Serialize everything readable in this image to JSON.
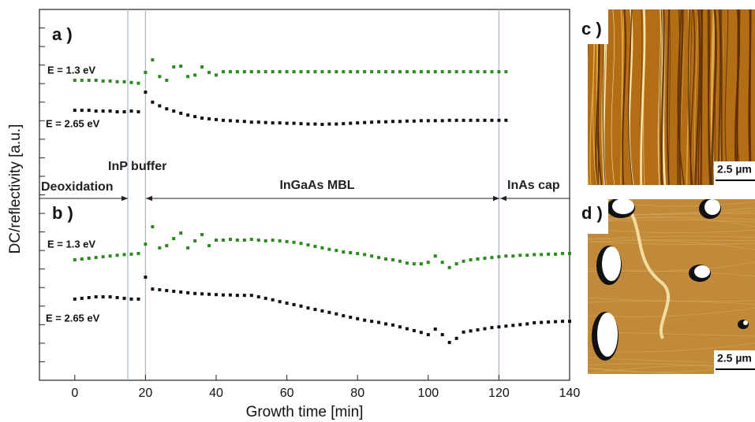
{
  "chart_data": {
    "type": "scatter",
    "xlabel": "Growth time [min]",
    "ylabel": "DC/reflectivity [a.u.]",
    "panel_labels": [
      "a )",
      "b )"
    ],
    "phases": [
      "Deoxidation",
      "InP buffer",
      "InGaAs MBL",
      "InAs cap"
    ],
    "vlines": [
      15,
      20,
      120
    ],
    "xlim": [
      -10,
      140
    ],
    "xticks": [
      0,
      20,
      40,
      60,
      80,
      100,
      120,
      140
    ],
    "ylim": [
      0,
      100
    ],
    "yticks": [
      5,
      10,
      15,
      20,
      25,
      30,
      35,
      40,
      45,
      50,
      55,
      60,
      65,
      70,
      75,
      80,
      85,
      90,
      95
    ],
    "x": [
      0,
      2,
      4,
      6,
      8,
      10,
      12,
      14,
      16,
      18,
      20,
      22,
      24,
      26,
      28,
      30,
      32,
      34,
      36,
      38,
      40,
      42,
      44,
      46,
      48,
      50,
      52,
      54,
      56,
      58,
      60,
      62,
      64,
      66,
      68,
      70,
      72,
      74,
      76,
      78,
      80,
      82,
      84,
      86,
      88,
      90,
      92,
      94,
      96,
      98,
      100,
      102,
      104,
      106,
      108,
      110,
      112,
      114,
      116,
      118,
      120,
      122,
      124,
      126,
      128,
      130,
      132,
      134,
      136,
      138,
      140
    ],
    "series": [
      {
        "name": "E = 1.3 eV",
        "color": "#2a8a1e",
        "values": [
          80.9,
          80.9,
          80.9,
          80.9,
          80.7,
          80.7,
          80.5,
          80.5,
          80.3,
          80.1,
          83.0,
          86.4,
          81.9,
          80.9,
          84.5,
          84.7,
          81.9,
          82.3,
          84.5,
          83.0,
          82.3,
          83.2,
          83.2,
          83.2,
          83.2,
          83.2,
          83.2,
          83.2,
          83.2,
          83.2,
          83.2,
          83.2,
          83.2,
          83.2,
          83.2,
          83.2,
          83.2,
          83.2,
          83.2,
          83.2,
          83.2,
          83.2,
          83.2,
          83.2,
          83.2,
          83.2,
          83.2,
          83.2,
          83.2,
          83.2,
          83.2,
          83.2,
          83.2,
          83.2,
          83.2,
          83.2,
          83.2,
          83.2,
          83.2,
          83.2,
          83.2,
          83.2,
          null,
          null,
          null,
          null,
          null,
          null,
          null,
          null,
          null
        ]
      },
      {
        "name": "E = 2.65 eV",
        "color": "#111111",
        "values": [
          72.8,
          72.8,
          72.8,
          72.6,
          72.6,
          72.6,
          72.4,
          72.4,
          72.6,
          72.4,
          77.7,
          75.0,
          74.0,
          73.2,
          72.6,
          72.0,
          71.5,
          71.1,
          70.7,
          70.5,
          70.3,
          70.1,
          70.0,
          69.9,
          69.8,
          69.6,
          69.6,
          69.5,
          69.4,
          69.4,
          69.3,
          69.3,
          69.2,
          69.1,
          69.1,
          69.0,
          69.1,
          69.1,
          69.2,
          69.3,
          69.4,
          69.5,
          69.6,
          69.7,
          69.7,
          69.8,
          69.8,
          69.9,
          69.9,
          70.0,
          70.0,
          70.0,
          70.0,
          70.1,
          70.1,
          70.1,
          70.1,
          70.1,
          70.1,
          70.1,
          70.1,
          70.1,
          null,
          null,
          null,
          null,
          null,
          null,
          null,
          null,
          null
        ]
      },
      {
        "name": "E = 1.3 eV",
        "color": "#2a8a1e",
        "values": [
          32.5,
          32.7,
          32.9,
          33.1,
          33.3,
          33.5,
          33.7,
          33.9,
          34.0,
          34.2,
          36.7,
          41.4,
          35.7,
          36.3,
          38.2,
          39.7,
          35.7,
          37.6,
          39.3,
          36.3,
          37.8,
          37.8,
          38.0,
          37.8,
          37.8,
          38.0,
          37.8,
          37.6,
          37.8,
          37.6,
          37.4,
          37.2,
          36.9,
          36.5,
          36.1,
          35.7,
          35.3,
          35.0,
          34.6,
          34.4,
          34.2,
          33.9,
          33.5,
          33.1,
          32.7,
          32.5,
          32.1,
          31.6,
          31.4,
          31.4,
          31.8,
          33.5,
          31.8,
          30.4,
          31.4,
          32.1,
          32.5,
          32.7,
          32.9,
          33.1,
          33.3,
          33.5,
          33.5,
          33.7,
          33.7,
          33.9,
          33.9,
          34.0,
          34.0,
          34.2,
          34.2
        ]
      },
      {
        "name": "E = 2.65 eV",
        "color": "#111111",
        "values": [
          21.9,
          22.1,
          22.3,
          22.5,
          22.5,
          22.5,
          22.3,
          22.1,
          21.9,
          21.9,
          27.8,
          24.6,
          24.4,
          24.2,
          24.0,
          23.8,
          23.6,
          23.4,
          23.3,
          23.2,
          23.1,
          23.0,
          23.0,
          22.9,
          22.9,
          22.9,
          22.5,
          22.1,
          21.7,
          21.2,
          20.8,
          20.4,
          20.0,
          19.5,
          19.1,
          18.7,
          18.3,
          17.9,
          17.4,
          17.0,
          16.6,
          16.2,
          15.9,
          15.6,
          15.2,
          14.9,
          14.4,
          13.9,
          13.4,
          12.9,
          12.3,
          13.8,
          12.3,
          10.2,
          11.3,
          13.0,
          13.3,
          13.6,
          13.9,
          14.2,
          14.4,
          14.6,
          14.8,
          15.0,
          15.2,
          15.5,
          15.6,
          15.7,
          15.8,
          15.9,
          15.9
        ]
      }
    ]
  },
  "images": [
    {
      "label": "c )",
      "scale": "2.5 µm"
    },
    {
      "label": "d )",
      "scale": "2.5 µm"
    }
  ]
}
